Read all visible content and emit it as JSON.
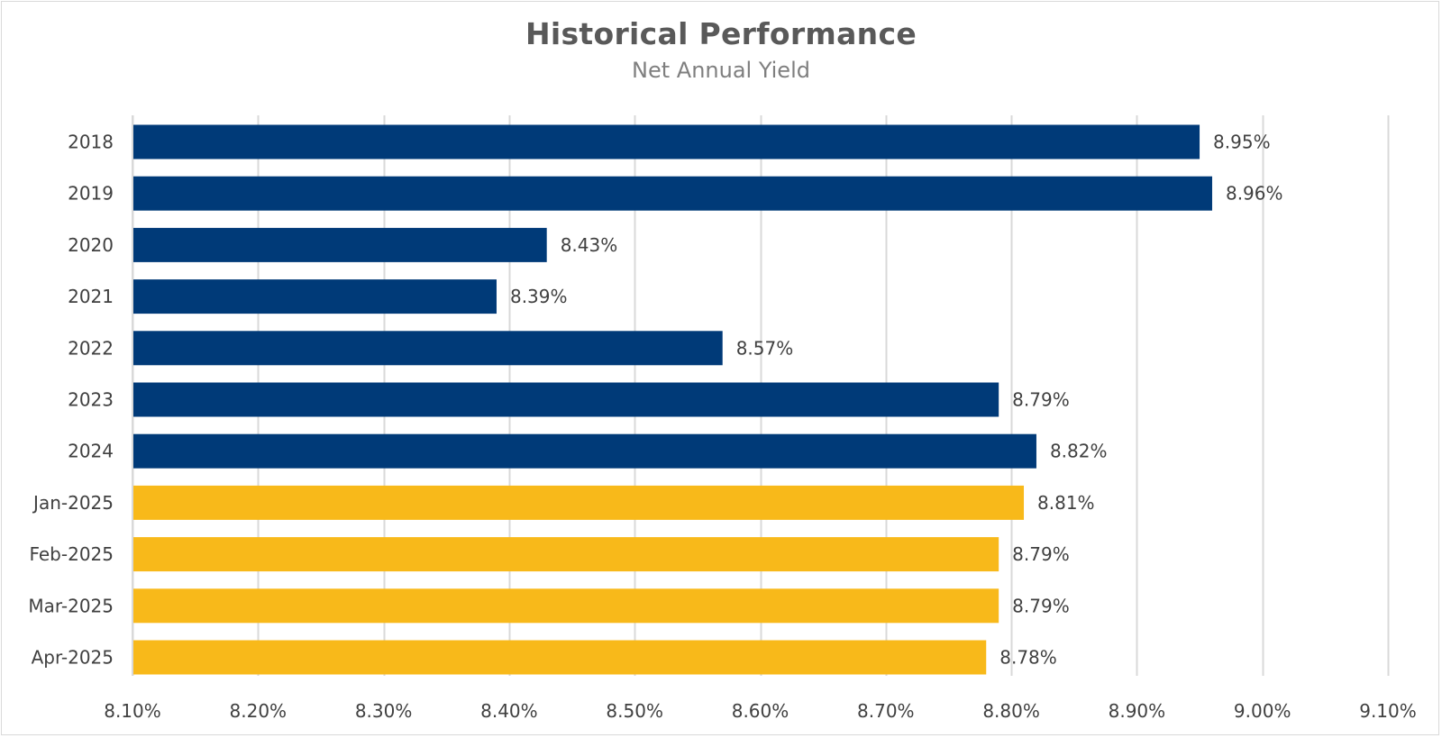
{
  "chart_data": {
    "type": "bar",
    "orientation": "horizontal",
    "title": "Historical Performance",
    "subtitle": "Net Annual Yield",
    "categories": [
      "2018",
      "2019",
      "2020",
      "2021",
      "2022",
      "2023",
      "2024",
      "Jan-2025",
      "Feb-2025",
      "Mar-2025",
      "Apr-2025"
    ],
    "values": [
      8.95,
      8.96,
      8.43,
      8.39,
      8.57,
      8.79,
      8.82,
      8.81,
      8.79,
      8.79,
      8.78
    ],
    "data_labels": [
      "8.95%",
      "8.96%",
      "8.43%",
      "8.39%",
      "8.57%",
      "8.79%",
      "8.82%",
      "8.81%",
      "8.79%",
      "8.79%",
      "8.78%"
    ],
    "bar_colors": [
      "#003a78",
      "#003a78",
      "#003a78",
      "#003a78",
      "#003a78",
      "#003a78",
      "#003a78",
      "#f8b91a",
      "#f8b91a",
      "#f8b91a",
      "#f8b91a"
    ],
    "xlim": [
      8.1,
      9.1
    ],
    "x_ticks": [
      8.1,
      8.2,
      8.3,
      8.4,
      8.5,
      8.6,
      8.7,
      8.8,
      8.9,
      9.0,
      9.1
    ],
    "x_tick_labels": [
      "8.10%",
      "8.20%",
      "8.30%",
      "8.40%",
      "8.50%",
      "8.60%",
      "8.70%",
      "8.80%",
      "8.90%",
      "9.00%",
      "9.10%"
    ],
    "grid": "vertical",
    "legend": "none",
    "xlabel": "",
    "ylabel": ""
  },
  "colors": {
    "annual": "#003a78",
    "monthly": "#f8b91a",
    "grid": "#d9d9d9",
    "text": "#404040"
  }
}
